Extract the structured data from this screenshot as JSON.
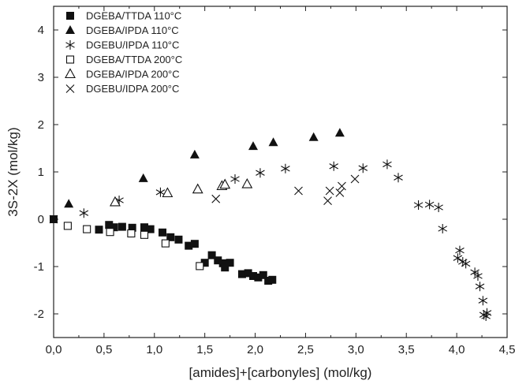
{
  "chart_data": {
    "type": "scatter",
    "xlabel": "[amides]+[carbonyles] (mol/kg)",
    "ylabel": "3S-2X (mol/kg)",
    "xlim": [
      0,
      4.5
    ],
    "ylim": [
      -2.5,
      4.5
    ],
    "x_ticks": [
      0,
      0.5,
      1,
      1.5,
      2,
      2.5,
      3,
      3.5,
      4,
      4.5
    ],
    "x_tick_labels": [
      "0,0",
      "0,5",
      "1,0",
      "1,5",
      "2,0",
      "2,5",
      "3,0",
      "3,5",
      "4,0",
      "4,5"
    ],
    "y_ticks": [
      -2,
      -1,
      0,
      1,
      2,
      3,
      4
    ],
    "y_tick_labels": [
      "-2",
      "-1",
      "0",
      "1",
      "2",
      "3",
      "4"
    ],
    "grid": false,
    "legend_position": "top-left",
    "series": [
      {
        "name": "DGEBA/TTDA 110°C",
        "marker": "filled-square",
        "points": [
          [
            0.0,
            0.0
          ],
          [
            0.45,
            -0.22
          ],
          [
            0.55,
            -0.12
          ],
          [
            0.6,
            -0.17
          ],
          [
            0.68,
            -0.16
          ],
          [
            0.78,
            -0.18
          ],
          [
            0.9,
            -0.17
          ],
          [
            0.96,
            -0.21
          ],
          [
            1.08,
            -0.28
          ],
          [
            1.16,
            -0.38
          ],
          [
            1.24,
            -0.43
          ],
          [
            1.34,
            -0.56
          ],
          [
            1.4,
            -0.52
          ],
          [
            1.5,
            -0.92
          ],
          [
            1.57,
            -0.76
          ],
          [
            1.63,
            -0.87
          ],
          [
            1.68,
            -0.93
          ],
          [
            1.7,
            -1.02
          ],
          [
            1.75,
            -0.92
          ],
          [
            1.87,
            -1.16
          ],
          [
            1.93,
            -1.14
          ],
          [
            1.98,
            -1.2
          ],
          [
            2.03,
            -1.23
          ],
          [
            2.08,
            -1.18
          ],
          [
            2.13,
            -1.3
          ],
          [
            2.17,
            -1.28
          ]
        ]
      },
      {
        "name": "DGEBA/IPDA 110°C",
        "marker": "filled-triangle",
        "points": [
          [
            0.15,
            0.32
          ],
          [
            0.89,
            0.86
          ],
          [
            1.4,
            1.36
          ],
          [
            1.98,
            1.54
          ],
          [
            2.18,
            1.62
          ],
          [
            2.58,
            1.73
          ],
          [
            2.84,
            1.82
          ]
        ]
      },
      {
        "name": "DGEBU/IPDA 110°C",
        "marker": "asterisk",
        "points": [
          [
            0.3,
            0.13
          ],
          [
            0.65,
            0.4
          ],
          [
            1.06,
            0.57
          ],
          [
            1.8,
            0.85
          ],
          [
            2.05,
            0.98
          ],
          [
            2.3,
            1.07
          ],
          [
            2.78,
            1.12
          ],
          [
            3.07,
            1.08
          ],
          [
            3.31,
            1.16
          ],
          [
            3.42,
            0.88
          ],
          [
            3.62,
            0.3
          ],
          [
            3.73,
            0.31
          ],
          [
            3.82,
            0.25
          ],
          [
            3.86,
            -0.2
          ],
          [
            4.01,
            -0.82
          ],
          [
            4.03,
            -0.66
          ],
          [
            4.06,
            -0.9
          ],
          [
            4.09,
            -0.94
          ],
          [
            4.18,
            -1.12
          ],
          [
            4.21,
            -1.2
          ],
          [
            4.23,
            -1.42
          ],
          [
            4.26,
            -1.72
          ],
          [
            4.27,
            -2.02
          ],
          [
            4.29,
            -2.05
          ],
          [
            4.3,
            -1.98
          ]
        ]
      },
      {
        "name": "DGEBA/TTDA 200°C",
        "marker": "open-square",
        "points": [
          [
            0.14,
            -0.14
          ],
          [
            0.33,
            -0.21
          ],
          [
            0.56,
            -0.27
          ],
          [
            0.77,
            -0.3
          ],
          [
            0.9,
            -0.33
          ],
          [
            1.11,
            -0.51
          ],
          [
            1.45,
            -0.99
          ]
        ]
      },
      {
        "name": "DGEBA/IPDA 200°C",
        "marker": "open-triangle",
        "points": [
          [
            0.61,
            0.36
          ],
          [
            1.13,
            0.55
          ],
          [
            1.43,
            0.63
          ],
          [
            1.67,
            0.7
          ],
          [
            1.7,
            0.73
          ],
          [
            1.92,
            0.74
          ]
        ]
      },
      {
        "name": "DGEBU/IDPA 200°C",
        "marker": "x-cross",
        "points": [
          [
            0.0,
            0.0
          ],
          [
            1.61,
            0.43
          ],
          [
            2.43,
            0.6
          ],
          [
            2.72,
            0.39
          ],
          [
            2.74,
            0.6
          ],
          [
            2.84,
            0.56
          ],
          [
            2.86,
            0.7
          ],
          [
            2.99,
            0.85
          ]
        ]
      }
    ]
  }
}
